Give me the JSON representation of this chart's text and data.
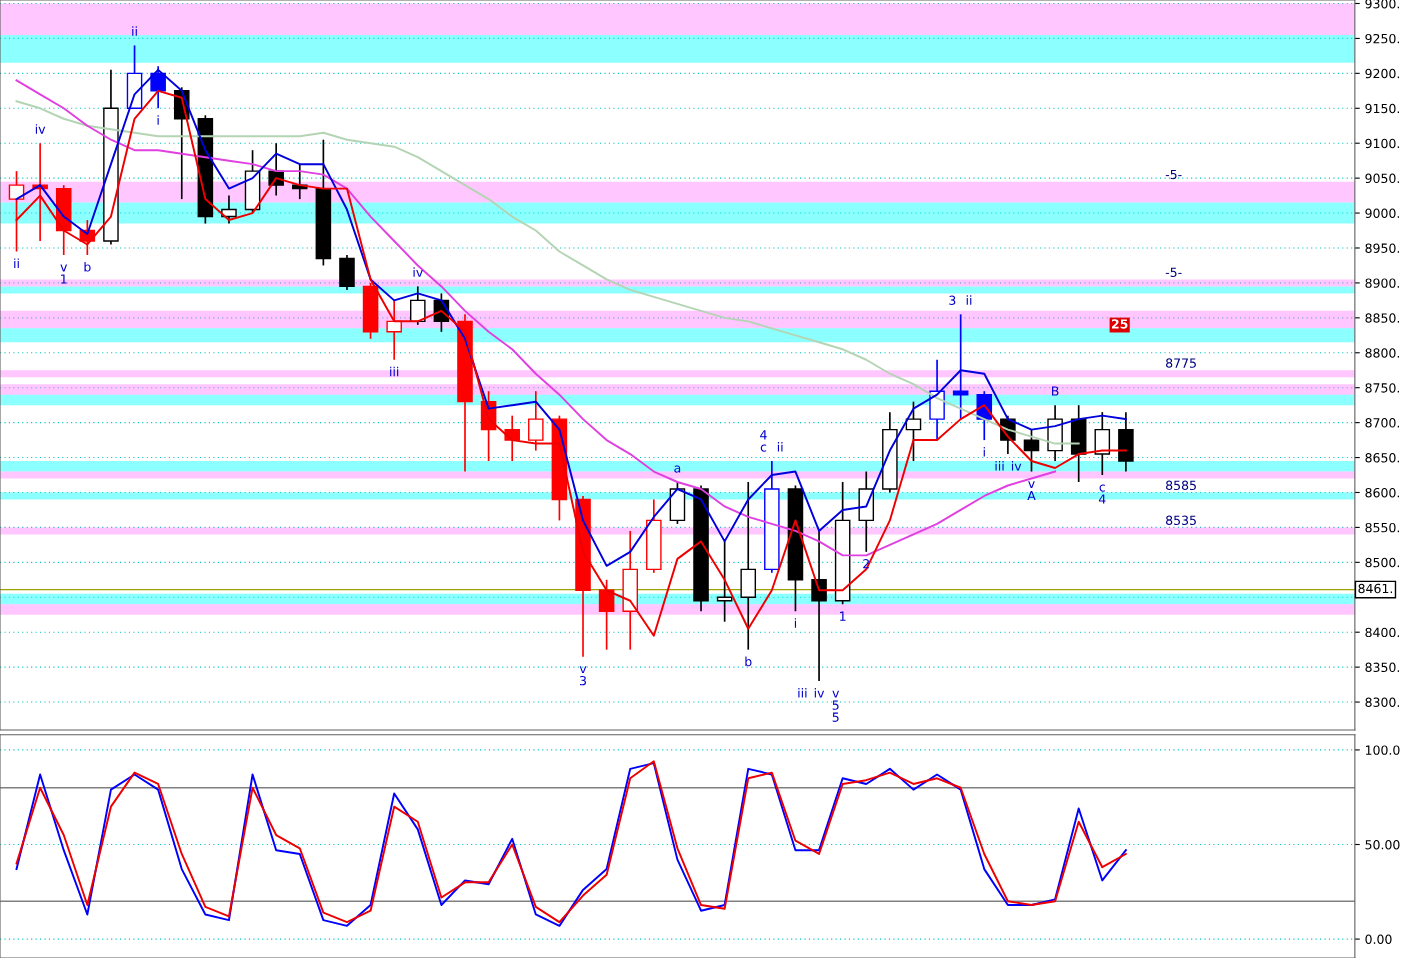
{
  "chart_data": [
    {
      "type": "candlestick",
      "categories": [
        null,
        null,
        null,
        null,
        null,
        null,
        null,
        null,
        null,
        null,
        null,
        null,
        null,
        null,
        null,
        null,
        null,
        null,
        null,
        null,
        null,
        null,
        null,
        null,
        null,
        null,
        null,
        null,
        null,
        null,
        null,
        null,
        null,
        null,
        null,
        null,
        null,
        null,
        null,
        null,
        null,
        null,
        null,
        null,
        null,
        null,
        null,
        null,
        null,
        null,
        null,
        null,
        null,
        null,
        null,
        null,
        null
      ],
      "ohlc": [
        [
          9020,
          9060,
          8945,
          9040
        ],
        [
          9040,
          9100,
          8960,
          9035
        ],
        [
          9035,
          9040,
          8940,
          8975
        ],
        [
          8975,
          8990,
          8940,
          8960
        ],
        [
          8960,
          9205,
          8955,
          9150
        ],
        [
          9150,
          9240,
          9150,
          9200
        ],
        [
          9200,
          9210,
          9150,
          9175
        ],
        [
          9175,
          9180,
          9020,
          9135
        ],
        [
          9135,
          9140,
          8985,
          8995
        ],
        [
          8995,
          9025,
          8985,
          9005
        ],
        [
          9005,
          9090,
          9000,
          9060
        ],
        [
          9060,
          9100,
          9025,
          9040
        ],
        [
          9040,
          9070,
          9020,
          9035
        ],
        [
          9035,
          9105,
          8925,
          8935
        ],
        [
          8935,
          8940,
          8890,
          8895
        ],
        [
          8895,
          8900,
          8820,
          8830
        ],
        [
          8830,
          8875,
          8790,
          8845
        ],
        [
          8845,
          8895,
          8840,
          8875
        ],
        [
          8875,
          8885,
          8830,
          8845
        ],
        [
          8845,
          8855,
          8630,
          8730
        ],
        [
          8730,
          8745,
          8645,
          8690
        ],
        [
          8690,
          8710,
          8645,
          8675
        ],
        [
          8675,
          8745,
          8660,
          8705
        ],
        [
          8705,
          8710,
          8560,
          8590
        ],
        [
          8590,
          8595,
          8365,
          8460
        ],
        [
          8460,
          8475,
          8375,
          8430
        ],
        [
          8430,
          8545,
          8375,
          8490
        ],
        [
          8490,
          8590,
          8485,
          8560
        ],
        [
          8560,
          8615,
          8555,
          8605
        ],
        [
          8605,
          8610,
          8430,
          8445
        ],
        [
          8445,
          8530,
          8415,
          8450
        ],
        [
          8450,
          8615,
          8375,
          8490
        ],
        [
          8490,
          8645,
          8485,
          8605
        ],
        [
          8605,
          8610,
          8430,
          8475
        ],
        [
          8475,
          8545,
          8330,
          8445
        ],
        [
          8445,
          8615,
          8440,
          8560
        ],
        [
          8560,
          8630,
          8515,
          8605
        ],
        [
          8605,
          8715,
          8600,
          8690
        ],
        [
          8690,
          8730,
          8645,
          8705
        ],
        [
          8705,
          8790,
          8675,
          8745
        ],
        [
          8745,
          8855,
          8705,
          8740
        ],
        [
          8740,
          8745,
          8675,
          8705
        ],
        [
          8705,
          8710,
          8655,
          8675
        ],
        [
          8675,
          8690,
          8630,
          8660
        ],
        [
          8660,
          8725,
          8645,
          8705
        ],
        [
          8705,
          8725,
          8615,
          8655
        ],
        [
          8655,
          8715,
          8625,
          8690
        ],
        [
          8690,
          8715,
          8630,
          8645
        ],
        null,
        null,
        null,
        null,
        null,
        null,
        null,
        null,
        null
      ],
      "colors": [
        "#ff0000",
        "#ff0000",
        "#ff0000",
        "#ff0000",
        "#000000",
        "#0000ff",
        "#0000ff",
        "#000000",
        "#000000",
        "#000000",
        "#000000",
        "#000000",
        "#000000",
        "#000000",
        "#000000",
        "#ff0000",
        "#ff0000",
        "#000000",
        "#000000",
        "#ff0000",
        "#ff0000",
        "#ff0000",
        "#ff0000",
        "#ff0000",
        "#ff0000",
        "#ff0000",
        "#ff0000",
        "#ff0000",
        "#000000",
        "#000000",
        "#000000",
        "#000000",
        "#0000ff",
        "#000000",
        "#000000",
        "#000000",
        "#000000",
        "#000000",
        "#000000",
        "#0000ff",
        "#0000ff",
        "#0000ff",
        "#000000",
        "#000000",
        "#000000",
        "#000000",
        "#000000",
        "#000000",
        null,
        null,
        null,
        null,
        null,
        null,
        null,
        null,
        null
      ],
      "value_labels": [
        "ii",
        "iv",
        "v\n1",
        "b",
        null,
        "ii",
        "i",
        null,
        null,
        null,
        null,
        null,
        null,
        null,
        null,
        null,
        "iii",
        "iv",
        null,
        null,
        null,
        null,
        null,
        null,
        "v\n3",
        null,
        null,
        null,
        "a",
        null,
        null,
        "b",
        [
          "4\nc",
          "ii"
        ],
        "i",
        [
          "iii",
          "iv",
          "v\n5\n5"
        ],
        "1",
        "2",
        null,
        null,
        null,
        [
          "3",
          "ii"
        ],
        "i",
        [
          "iii",
          "iv"
        ],
        "v\nA",
        "B",
        null,
        "c\n4",
        null,
        null,
        null,
        null,
        null,
        null,
        null,
        null,
        null,
        null
      ],
      "series": [
        {
          "type": "line",
          "color": "#b4d4b4",
          "values": [
            9160,
            9150,
            9135,
            9125,
            9120,
            9115,
            9110,
            9110,
            9110,
            9110,
            9110,
            9110,
            9110,
            9115,
            9105,
            9100,
            9095,
            9080,
            9060,
            9040,
            9020,
            8995,
            8975,
            8945,
            8925,
            8905,
            8890,
            8880,
            8870,
            8860,
            8850,
            8845,
            8835,
            8825,
            8815,
            8805,
            8790,
            8770,
            8755,
            8735,
            8720,
            8705,
            8690,
            8680,
            8670,
            8670,
            null,
            null,
            null,
            null,
            null,
            null,
            null,
            null,
            null,
            null,
            null
          ]
        },
        {
          "type": "line",
          "color": "#e040e0",
          "values": [
            9190,
            9170,
            9150,
            9125,
            9105,
            9090,
            9090,
            9085,
            9080,
            9075,
            9070,
            9060,
            9060,
            9055,
            9035,
            8995,
            8960,
            8925,
            8895,
            8860,
            8830,
            8805,
            8770,
            8740,
            8705,
            8675,
            8655,
            8630,
            8615,
            8605,
            8580,
            8565,
            8555,
            8545,
            8530,
            8510,
            8510,
            8525,
            8540,
            8555,
            8575,
            8595,
            8610,
            8620,
            8630,
            null,
            null,
            null,
            null,
            null,
            null,
            null,
            null,
            null,
            null,
            null,
            null
          ]
        },
        {
          "type": "line",
          "color": "#0000dd",
          "values": [
            9020,
            9040,
            8995,
            8970,
            9070,
            9170,
            9205,
            9175,
            9090,
            9035,
            9050,
            9085,
            9070,
            9070,
            9005,
            8905,
            8875,
            8885,
            8875,
            8820,
            8720,
            8725,
            8730,
            8690,
            8560,
            8495,
            8515,
            8565,
            8605,
            8590,
            8530,
            8590,
            8625,
            8630,
            8545,
            8575,
            8580,
            8660,
            8720,
            8740,
            8775,
            8770,
            8705,
            8690,
            8695,
            8705,
            8710,
            8705,
            null,
            null,
            null,
            null,
            null,
            null,
            null,
            null,
            null
          ]
        },
        {
          "type": "line",
          "color": "#ee0000",
          "values": [
            8990,
            9025,
            8975,
            8955,
            8995,
            9135,
            9175,
            9165,
            9020,
            8990,
            9000,
            9050,
            9040,
            9035,
            9035,
            8905,
            8845,
            8845,
            8860,
            8830,
            8705,
            8675,
            8670,
            8670,
            8515,
            8460,
            8445,
            8395,
            8505,
            8530,
            8475,
            8405,
            8460,
            8560,
            8460,
            8460,
            8490,
            8560,
            8675,
            8675,
            8705,
            8725,
            8680,
            8645,
            8635,
            8655,
            8660,
            8660,
            null,
            null,
            null,
            null,
            null,
            null,
            null,
            null,
            null
          ]
        }
      ],
      "ylim": [
        8260,
        9305
      ],
      "yticks": [
        {
          "value": 8300,
          "label": "8300."
        },
        {
          "value": 8350,
          "label": "8350."
        },
        {
          "value": 8400,
          "label": "8400."
        },
        {
          "value": 8450,
          "label": null
        },
        {
          "value": 8500,
          "label": "8500."
        },
        {
          "value": 8550,
          "label": "8550."
        },
        {
          "value": 8600,
          "label": "8600."
        },
        {
          "value": 8650,
          "label": "8650."
        },
        {
          "value": 8700,
          "label": "8700."
        },
        {
          "value": 8750,
          "label": "8750."
        },
        {
          "value": 8800,
          "label": "8800."
        },
        {
          "value": 8850,
          "label": "8850."
        },
        {
          "value": 8900,
          "label": "8900."
        },
        {
          "value": 8950,
          "label": "8950."
        },
        {
          "value": 9000,
          "label": "9000."
        },
        {
          "value": 9050,
          "label": "9050."
        },
        {
          "value": 9100,
          "label": "9100."
        },
        {
          "value": 9150,
          "label": "9150."
        },
        {
          "value": 9200,
          "label": "9200."
        },
        {
          "value": 9250,
          "label": "9250."
        },
        {
          "value": 9300,
          "label": "9300."
        }
      ],
      "grid": "y",
      "ref_lines": [
        {
          "axis": "y",
          "value": 8461,
          "label": "8461.",
          "color": "#a0a000"
        }
      ],
      "bands": [
        {
          "axis": "y",
          "from": 9255,
          "to": 9300,
          "color": "#ff80ff"
        },
        {
          "axis": "y",
          "from": 9215,
          "to": 9255,
          "color": "#00ffff"
        },
        {
          "axis": "y",
          "from": 9015,
          "to": 9045,
          "color": "#ff80ff",
          "label": "-5-"
        },
        {
          "axis": "y",
          "from": 8985,
          "to": 9015,
          "color": "#00ffff"
        },
        {
          "axis": "y",
          "from": 8895,
          "to": 8905,
          "color": "#ff80ff",
          "label": "-5-"
        },
        {
          "axis": "y",
          "from": 8885,
          "to": 8895,
          "color": "#00ffff"
        },
        {
          "axis": "y",
          "from": 8835,
          "to": 8860,
          "color": "#ff80ff"
        },
        {
          "axis": "y",
          "from": 8815,
          "to": 8835,
          "color": "#00ffff"
        },
        {
          "axis": "y",
          "from": 8765,
          "to": 8775,
          "color": "#ff80ff",
          "label": "8775"
        },
        {
          "axis": "y",
          "from": 8740,
          "to": 8755,
          "color": "#ff80ff"
        },
        {
          "axis": "y",
          "from": 8725,
          "to": 8740,
          "color": "#00ffff"
        },
        {
          "axis": "y",
          "from": 8630,
          "to": 8645,
          "color": "#00ffff"
        },
        {
          "axis": "y",
          "from": 8620,
          "to": 8630,
          "color": "#ff80ff"
        },
        {
          "axis": "y",
          "from": 8590,
          "to": 8600,
          "color": "#00ffff",
          "label": "8585"
        },
        {
          "axis": "y",
          "from": 8540,
          "to": 8550,
          "color": "#ff80ff",
          "label": "8535"
        },
        {
          "axis": "y",
          "from": 8440,
          "to": 8455,
          "color": "#00ffff"
        },
        {
          "axis": "y",
          "from": 8425,
          "to": 8440,
          "color": "#ff80ff"
        }
      ],
      "annotations": [
        "25"
      ]
    },
    {
      "type": "line",
      "categories": [
        null,
        null,
        null,
        null,
        null,
        null,
        null,
        null,
        null,
        null,
        null,
        null,
        null,
        null,
        null,
        null,
        null,
        null,
        null,
        null,
        null,
        null,
        null,
        null,
        null,
        null,
        null,
        null,
        null,
        null,
        null,
        null,
        null,
        null,
        null,
        null,
        null,
        null,
        null,
        null,
        null,
        null,
        null,
        null,
        null,
        null,
        null,
        null,
        null,
        null,
        null,
        null,
        null,
        null,
        null,
        null,
        null
      ],
      "series": [
        {
          "color": "#0000ff",
          "values": [
            37,
            87,
            47,
            13,
            79,
            87,
            79,
            37,
            13,
            10,
            87,
            47,
            45,
            10,
            7,
            18,
            77,
            58,
            18,
            31,
            29,
            53,
            13,
            7,
            26,
            37,
            90,
            93,
            42,
            15,
            18,
            90,
            87,
            47,
            47,
            85,
            82,
            90,
            79,
            87,
            79,
            37,
            18,
            18,
            21,
            69,
            31,
            47,
            null,
            null,
            null,
            null,
            null,
            null,
            null,
            null,
            null
          ]
        },
        {
          "color": "#ee0000",
          "values": [
            40,
            80,
            55,
            18,
            70,
            88,
            82,
            45,
            17,
            12,
            80,
            55,
            48,
            14,
            9,
            15,
            70,
            62,
            22,
            30,
            30,
            50,
            17,
            9,
            23,
            34,
            85,
            94,
            48,
            18,
            16,
            85,
            88,
            52,
            45,
            82,
            84,
            88,
            82,
            85,
            80,
            45,
            20,
            18,
            20,
            62,
            38,
            45,
            null,
            null,
            null,
            null,
            null,
            null,
            null,
            null,
            null
          ]
        }
      ],
      "ylim": [
        -10,
        108
      ],
      "yticks": [
        {
          "value": 0,
          "label": "0.00"
        },
        {
          "value": 50,
          "label": "50.00"
        },
        {
          "value": 100,
          "label": "100.0"
        }
      ],
      "grid": "y",
      "ref_lines": [
        {
          "axis": "y",
          "value": 80,
          "color": "#808080"
        },
        {
          "axis": "y",
          "value": 20,
          "color": "#808080"
        }
      ]
    }
  ]
}
